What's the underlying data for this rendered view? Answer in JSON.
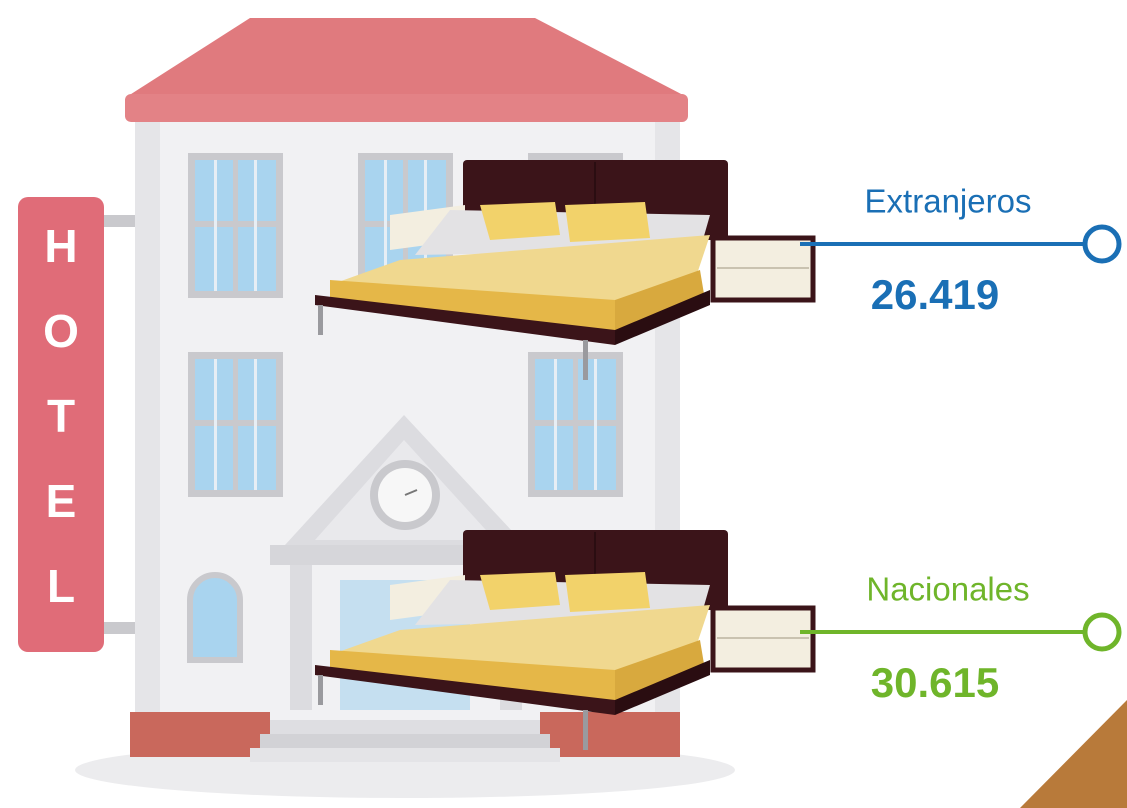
{
  "sign": [
    "H",
    "O",
    "T",
    "E",
    "L"
  ],
  "stats": [
    {
      "label": "Extranjeros",
      "value": "26.419",
      "color": "#1a6fb5"
    },
    {
      "label": "Nacionales",
      "value": "30.615",
      "color": "#6fb52a"
    }
  ]
}
